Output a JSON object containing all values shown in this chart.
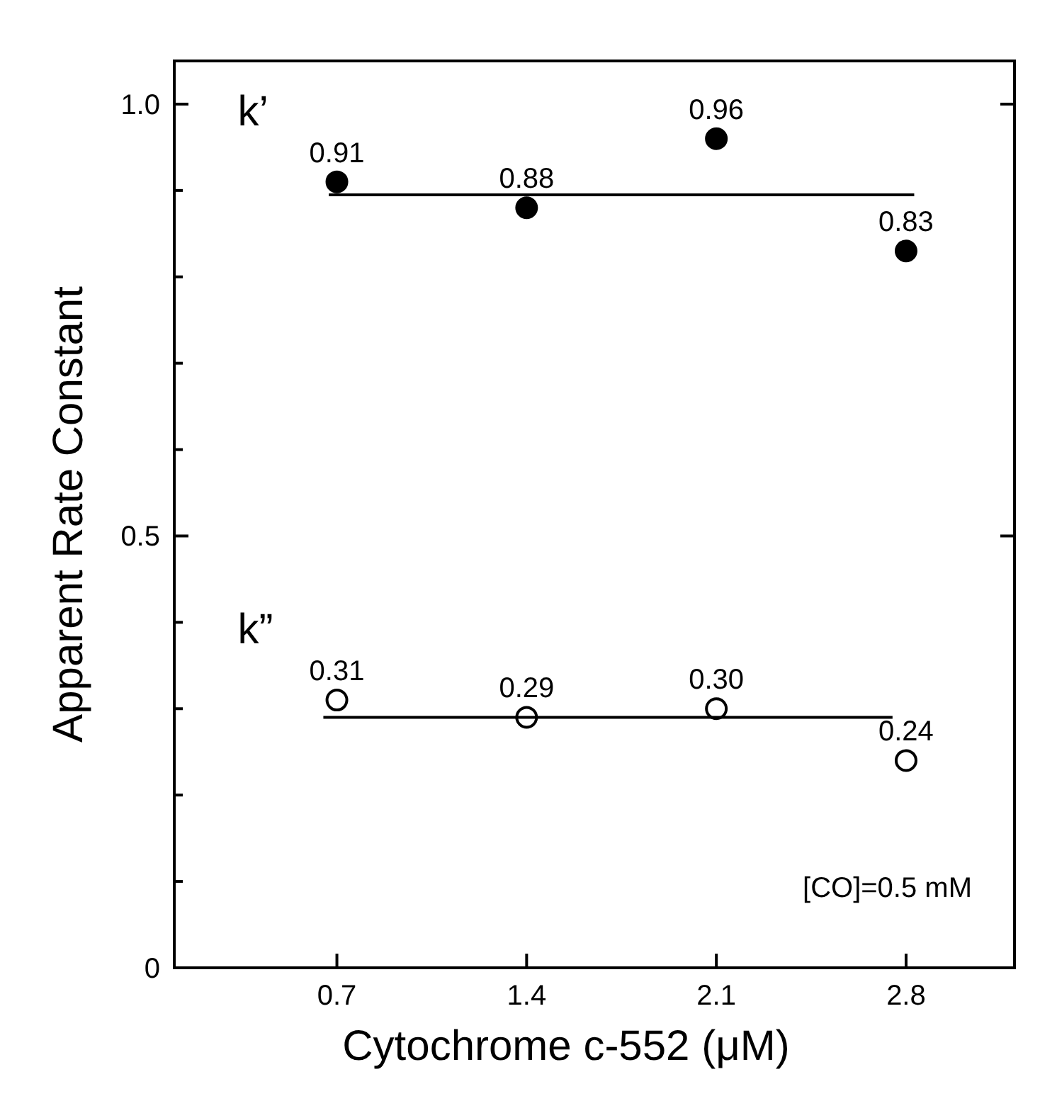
{
  "chart_data": {
    "type": "scatter",
    "xlabel": "Cytochrome c-552 (μM)",
    "ylabel": "Apparent Rate Constant",
    "xlim": [
      0.1,
      3.2
    ],
    "ylim": [
      0,
      1.05
    ],
    "xticks": [
      0.7,
      1.4,
      2.1,
      2.8
    ],
    "yticks": [
      0,
      {
        "value": 0.1,
        "label": null
      },
      {
        "value": 0.2,
        "label": null
      },
      {
        "value": 0.3,
        "label": null
      },
      {
        "value": 0.4,
        "label": null
      },
      {
        "value": 0.5,
        "label": "0.5"
      },
      {
        "value": 0.6,
        "label": null
      },
      {
        "value": 0.7,
        "label": null
      },
      {
        "value": 0.8,
        "label": null
      },
      {
        "value": 0.9,
        "label": null
      },
      {
        "value": 1.0,
        "label": "1.0"
      }
    ],
    "grid": false,
    "legend": "left",
    "series": [
      {
        "name": "k’",
        "marker": "circle",
        "color": "#000000",
        "x": [
          0.7,
          1.4,
          2.1,
          2.8
        ],
        "values": [
          0.91,
          0.88,
          0.96,
          0.83
        ],
        "value_labels": [
          "0.91",
          "0.88",
          "0.96",
          "0.83"
        ]
      },
      {
        "name": "k”",
        "marker": "circle",
        "color": "#000000",
        "x": [
          0.7,
          1.4,
          2.1,
          2.8
        ],
        "values": [
          0.31,
          0.29,
          0.3,
          0.24
        ],
        "value_labels": [
          "0.31",
          "0.29",
          "0.30",
          "0.24"
        ]
      },
      {
        "type": "line",
        "color": "#000000",
        "x": [
          0.67,
          2.83
        ],
        "values": [
          0.895,
          0.895
        ]
      },
      {
        "type": "line",
        "color": "#000000",
        "x": [
          0.65,
          2.75
        ],
        "values": [
          0.29,
          0.29
        ]
      }
    ],
    "annotations": [
      "[CO]=0.5 mM"
    ]
  }
}
